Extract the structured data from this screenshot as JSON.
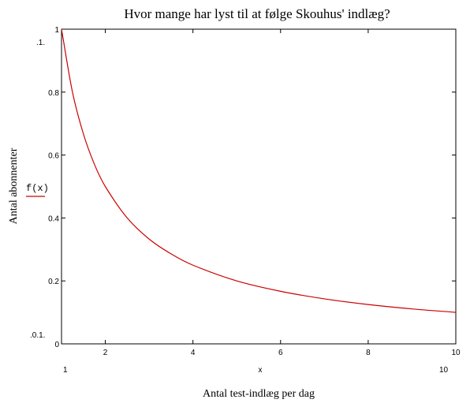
{
  "chart_data": {
    "type": "line",
    "title": "Hvor mange har lyst til at følge Skouhus' indlæg?",
    "xlabel": "Antal test-indlæg per dag",
    "ylabel": "Antal abonnenter",
    "x_var": "x",
    "xlim": [
      1,
      10
    ],
    "ylim": [
      0,
      1
    ],
    "xlim_labels": [
      "1",
      "10"
    ],
    "ylim_labels": [
      ".1.",
      ".0.1."
    ],
    "x_ticks": [
      {
        "value": 2,
        "label": "2"
      },
      {
        "value": 4,
        "label": "4"
      },
      {
        "value": 6,
        "label": "6"
      },
      {
        "value": 8,
        "label": "8"
      },
      {
        "value": 10,
        "label": "10"
      }
    ],
    "y_ticks": [
      {
        "value": 0,
        "label": "0"
      },
      {
        "value": 0.2,
        "label": "0.2"
      },
      {
        "value": 0.4,
        "label": "0.4"
      },
      {
        "value": 0.6,
        "label": "0.6"
      },
      {
        "value": 0.8,
        "label": "0.8"
      },
      {
        "value": 1,
        "label": "1"
      }
    ],
    "grid": false,
    "series": [
      {
        "name": "f(x)",
        "color": "#cc0000",
        "x": [
          1,
          1.25,
          1.5,
          1.75,
          2,
          2.5,
          3,
          3.5,
          4,
          5,
          6,
          7,
          8,
          9,
          10
        ],
        "y": [
          1,
          0.8,
          0.667,
          0.571,
          0.5,
          0.4,
          0.333,
          0.286,
          0.25,
          0.2,
          0.167,
          0.143,
          0.125,
          0.111,
          0.1
        ]
      }
    ]
  }
}
